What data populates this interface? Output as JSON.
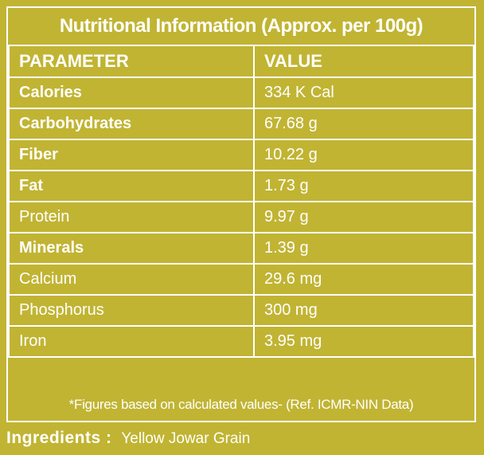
{
  "title": "Nutritional Information (Approx. per 100g)",
  "headers": {
    "parameter": "PARAMETER",
    "value": "VALUE"
  },
  "rows": [
    {
      "parameter": "Calories",
      "value": "334 K Cal",
      "bold": true
    },
    {
      "parameter": "Carbohydrates",
      "value": "67.68 g",
      "bold": true
    },
    {
      "parameter": "Fiber",
      "value": "10.22 g",
      "bold": true
    },
    {
      "parameter": "Fat",
      "value": "1.73 g",
      "bold": true
    },
    {
      "parameter": "Protein",
      "value": "9.97 g",
      "bold": false
    },
    {
      "parameter": "Minerals",
      "value": "1.39 g",
      "bold": true
    },
    {
      "parameter": "Calcium",
      "value": "29.6 mg",
      "bold": false
    },
    {
      "parameter": "Phosphorus",
      "value": "300 mg",
      "bold": false
    },
    {
      "parameter": "Iron",
      "value": "3.95 mg",
      "bold": false
    }
  ],
  "footnote": "*Figures based on calculated values- (Ref. ICMR-NIN Data)",
  "ingredients": {
    "label": "Ingredients :",
    "value": "Yellow Jowar Grain"
  },
  "colors": {
    "background": "#c1b433",
    "text": "#ffffff",
    "border": "#ffffff"
  }
}
